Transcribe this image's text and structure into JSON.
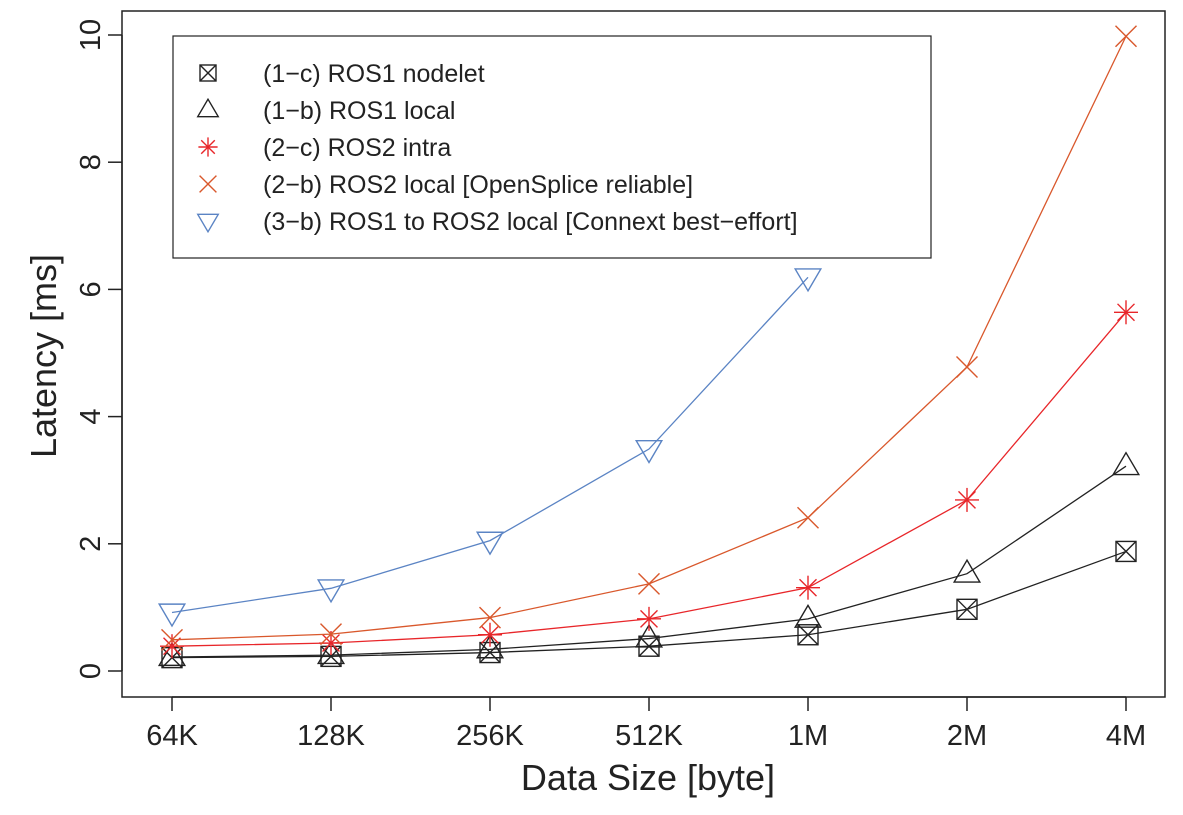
{
  "chart_data": {
    "type": "line",
    "xlabel": "Data Size [byte]",
    "ylabel": "Latency [ms]",
    "categories": [
      "64K",
      "128K",
      "256K",
      "512K",
      "1M",
      "2M",
      "4M"
    ],
    "ylim": [
      0,
      10
    ],
    "yticks": [
      "0",
      "2",
      "4",
      "6",
      "8",
      "10"
    ],
    "grid": false,
    "legend_position": "top-left",
    "series": [
      {
        "name": "(1−c) ROS1 nodelet",
        "marker": "boxed-x",
        "color": "#222222",
        "values": [
          0.21,
          0.23,
          0.29,
          0.39,
          0.57,
          0.97,
          1.88
        ]
      },
      {
        "name": "(1−b) ROS1 local",
        "marker": "triangle-up",
        "color": "#222222",
        "values": [
          0.22,
          0.25,
          0.34,
          0.51,
          0.82,
          1.53,
          3.22
        ]
      },
      {
        "name": "(2−c) ROS2 intra",
        "marker": "asterisk",
        "color": "#e8262a",
        "values": [
          0.39,
          0.44,
          0.57,
          0.82,
          1.31,
          2.69,
          5.64
        ]
      },
      {
        "name": "(2−b) ROS2 local [OpenSplice reliable]",
        "marker": "x",
        "color": "#d9582c",
        "values": [
          0.49,
          0.58,
          0.84,
          1.37,
          2.41,
          4.78,
          9.98
        ]
      },
      {
        "name": "(3−b) ROS1 to ROS2 local [Connext best−effort]",
        "marker": "triangle-down",
        "color": "#5b84c4",
        "values": [
          0.92,
          1.3,
          2.05,
          3.49,
          6.19,
          null,
          null
        ]
      }
    ]
  }
}
